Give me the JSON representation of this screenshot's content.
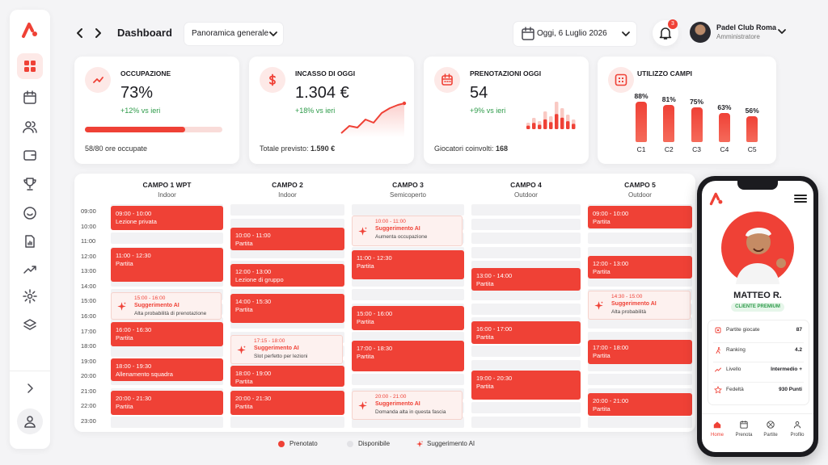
{
  "header": {
    "title": "Dashboard",
    "view": "Panoramica generale",
    "date": "Oggi, 6 Luglio 2026",
    "notifications": 3,
    "user": {
      "name": "Padel Club Roma",
      "role": "Amministratore"
    }
  },
  "kpis": [
    {
      "label": "OCCUPAZIONE",
      "value": "73%",
      "delta": "+12% vs ieri",
      "footer": "58/80 ore occupate"
    },
    {
      "label": "INCASSO DI OGGI",
      "value": "1.304 €",
      "delta": "+18% vs ieri",
      "footer": "Totale previsto:",
      "footer_value": "1.590 €"
    },
    {
      "label": "PRENOTAZIONI OGGI",
      "value": "54",
      "delta": "+9% vs ieri",
      "footer": "Giocatori coinvolti:",
      "footer_value": "168"
    }
  ],
  "court_usage": {
    "title": "UTILIZZO CAMPI",
    "categories": [
      "C1",
      "C2",
      "C3",
      "C4",
      "C5"
    ],
    "values": [
      88,
      81,
      75,
      63,
      56
    ],
    "value_labels": [
      "88%",
      "81%",
      "75%",
      "63%",
      "56%"
    ]
  },
  "schedule": {
    "times": [
      "09:00",
      "10:00",
      "11:00",
      "12:00",
      "13:00",
      "14:00",
      "15:00",
      "16:00",
      "17:00",
      "18:00",
      "19:00",
      "20:00",
      "21:00",
      "22:00",
      "23:00"
    ],
    "courts": [
      {
        "name": "CAMPO 1 WPT",
        "type": "Indoor",
        "bookings": [
          {
            "time": "09:00 - 10:00",
            "label": "Lezione privata"
          },
          {
            "time": "11:00 - 12:30",
            "label": "Partita"
          },
          {
            "time": "15:00 - 16:00",
            "title": "Suggerimento AI",
            "note": "Alta probabilità di prenotazione"
          },
          {
            "time": "16:00 - 16:30",
            "label": "Partita"
          },
          {
            "time": "18:00 - 19:30",
            "label": "Allenamento squadra"
          },
          {
            "time": "20:00 - 21:30",
            "label": "Partita"
          }
        ]
      },
      {
        "name": "CAMPO 2",
        "type": "Indoor",
        "bookings": [
          {
            "time": "10:00 - 11:00",
            "label": "Partita"
          },
          {
            "time": "12:00 - 13:00",
            "label": "Lezione di gruppo"
          },
          {
            "time": "14:00 - 15:30",
            "label": "Partita"
          },
          {
            "time": "17:15 - 18:00",
            "title": "Suggerimento AI",
            "note": "Slot perfetto per lezioni"
          },
          {
            "time": "18:00 - 19:00",
            "label": "Partita"
          },
          {
            "time": "20:00 - 21:30",
            "label": "Partita"
          }
        ]
      },
      {
        "name": "CAMPO 3",
        "type": "Semicoperto",
        "bookings": [
          {
            "time": "10:00 - 11:00",
            "title": "Suggerimento AI",
            "note": "Aumenta occupazione"
          },
          {
            "time": "11:00 - 12:30",
            "label": "Partita"
          },
          {
            "time": "15:00 - 16:00",
            "label": "Partita"
          },
          {
            "time": "17:00 - 18:30",
            "label": "Partita"
          },
          {
            "time": "20:00 - 21:00",
            "title": "Suggerimento AI",
            "note": "Domanda alta in questa fascia"
          }
        ]
      },
      {
        "name": "CAMPO 4",
        "type": "Outdoor",
        "bookings": [
          {
            "time": "13:00 - 14:00",
            "label": "Partita"
          },
          {
            "time": "16:00 - 17:00",
            "label": "Partita"
          },
          {
            "time": "19:00 - 20:30",
            "label": "Partita"
          }
        ]
      },
      {
        "name": "CAMPO 5",
        "type": "Outdoor",
        "bookings": [
          {
            "time": "09:00 - 10:00",
            "label": "Partita"
          },
          {
            "time": "12:00 - 13:00",
            "label": "Partita"
          },
          {
            "time": "14:30 - 15:00",
            "title": "Suggerimento AI",
            "note": "Alta probabilità"
          },
          {
            "time": "17:00 - 18:00",
            "label": "Partita"
          },
          {
            "time": "20:00 - 21:00",
            "label": "Partita"
          }
        ]
      }
    ]
  },
  "legend": [
    "Prenotato",
    "Disponibile",
    "Suggerimento AI"
  ],
  "player": {
    "name": "MATTEO R.",
    "badge": "CLIENTE PREMIUM",
    "stats": [
      {
        "label": "Partite giocate",
        "value": 87
      },
      {
        "label": "Ranking",
        "value": 4.2
      },
      {
        "label": "Livello",
        "value": "Intermedio +"
      },
      {
        "label": "Fedeltà",
        "value": "930 Punti"
      }
    ],
    "nav": [
      "Home",
      "Prenota",
      "Partite",
      "Profilo"
    ]
  }
}
